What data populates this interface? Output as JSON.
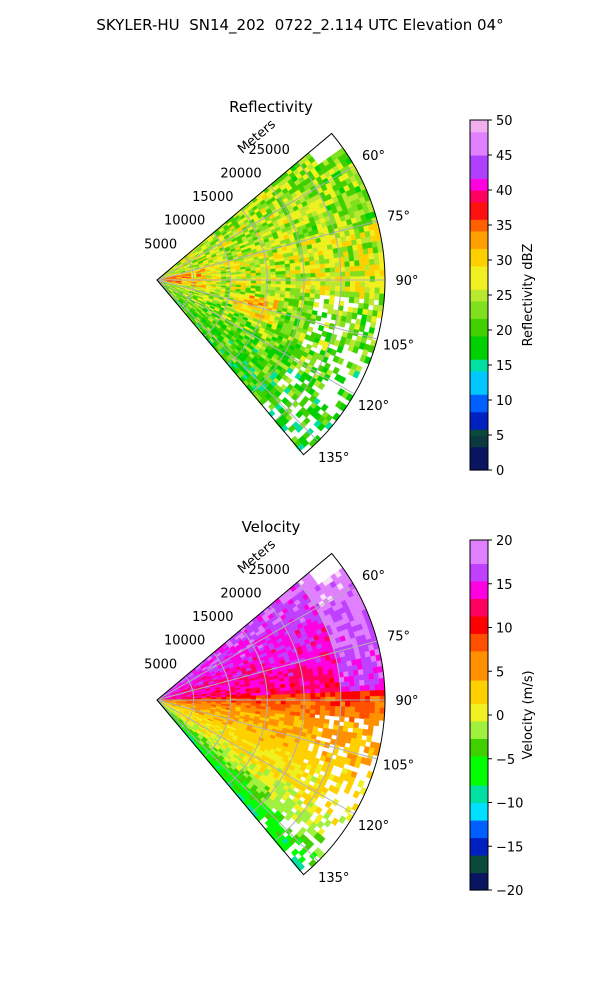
{
  "title": "SKYLER-HU  SN14_202  0722_2.114 UTC Elevation 04°",
  "chart_data": [
    {
      "type": "heatmap",
      "title": "Reflectivity",
      "range_label": "Meters",
      "range_ticks": [
        "5000",
        "10000",
        "15000",
        "20000",
        "25000"
      ],
      "range_tick_values": [
        5000,
        10000,
        15000,
        20000,
        25000
      ],
      "range_max": 31000,
      "azimuth_ticks": [
        "60°",
        "75°",
        "90°",
        "105°",
        "120°",
        "135°"
      ],
      "azimuth_tick_values": [
        60,
        75,
        90,
        105,
        120,
        135
      ],
      "azimuth_range": [
        50,
        140
      ],
      "grid": true,
      "colorbar": {
        "label": "Reflectivity dBZ",
        "min": 0,
        "max": 50,
        "ticks": [
          "0",
          "5",
          "10",
          "15",
          "20",
          "25",
          "30",
          "35",
          "40",
          "45",
          "50"
        ],
        "tick_values": [
          0,
          5,
          10,
          15,
          20,
          25,
          30,
          35,
          40,
          45,
          50
        ],
        "colors": [
          [
            0,
            "#0a1560"
          ],
          [
            3,
            "#0a3a40"
          ],
          [
            5,
            "#0a4a3a"
          ],
          [
            6,
            "#0020c0"
          ],
          [
            8,
            "#0060ff"
          ],
          [
            11,
            "#00c8ff"
          ],
          [
            14,
            "#00e0a0"
          ],
          [
            16,
            "#00d000"
          ],
          [
            19,
            "#40d000"
          ],
          [
            22,
            "#80e020"
          ],
          [
            24,
            "#b8e830"
          ],
          [
            26,
            "#f0f020"
          ],
          [
            29,
            "#ffd000"
          ],
          [
            32,
            "#ffa000"
          ],
          [
            34,
            "#ff6000"
          ],
          [
            36,
            "#ff1010"
          ],
          [
            38,
            "#ff0060"
          ],
          [
            40,
            "#ff00e0"
          ],
          [
            42,
            "#b040ff"
          ],
          [
            45,
            "#e080ff"
          ],
          [
            48,
            "#f0b0f0"
          ],
          [
            50,
            "#fbe0fb"
          ]
        ]
      }
    },
    {
      "type": "heatmap",
      "title": "Velocity",
      "range_label": "Meters",
      "range_ticks": [
        "5000",
        "10000",
        "15000",
        "20000",
        "25000"
      ],
      "range_tick_values": [
        5000,
        10000,
        15000,
        20000,
        25000
      ],
      "range_max": 31000,
      "azimuth_ticks": [
        "60°",
        "75°",
        "90°",
        "105°",
        "120°",
        "135°"
      ],
      "azimuth_tick_values": [
        60,
        75,
        90,
        105,
        120,
        135
      ],
      "azimuth_range": [
        50,
        140
      ],
      "grid": true,
      "colorbar": {
        "label": "Velocity (m/s)",
        "min": -20,
        "max": 20,
        "ticks": [
          "−20",
          "−15",
          "−10",
          "−5",
          "0",
          "5",
          "10",
          "15",
          "20"
        ],
        "tick_values": [
          -20,
          -15,
          -10,
          -5,
          0,
          5,
          10,
          15,
          20
        ],
        "colors": [
          [
            -20,
            "#0a1560"
          ],
          [
            -18,
            "#0a4a3a"
          ],
          [
            -16,
            "#0020c0"
          ],
          [
            -14,
            "#0060ff"
          ],
          [
            -12,
            "#00e0ff"
          ],
          [
            -10,
            "#00e0a0"
          ],
          [
            -8,
            "#00ff00"
          ],
          [
            -5,
            "#40d000"
          ],
          [
            -3,
            "#a0f040"
          ],
          [
            -1,
            "#f0f020"
          ],
          [
            1,
            "#ffd000"
          ],
          [
            4,
            "#ff9000"
          ],
          [
            7,
            "#ff5000"
          ],
          [
            9,
            "#ff0000"
          ],
          [
            11,
            "#ff0060"
          ],
          [
            13,
            "#ff00e0"
          ],
          [
            15,
            "#c040ff"
          ],
          [
            17,
            "#e080ff"
          ],
          [
            20,
            "#fbe0fb"
          ]
        ]
      }
    }
  ]
}
